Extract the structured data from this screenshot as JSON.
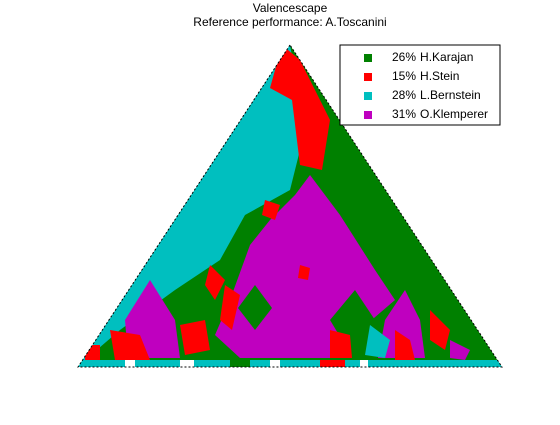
{
  "chart_data": {
    "type": "valencescape",
    "title": "Valencescape",
    "subtitle": "Reference performance: A.Toscanini",
    "series": [
      {
        "name": "H.Karajan",
        "color": "#008000",
        "values": [
          26
        ],
        "value_labels": [
          "26%"
        ]
      },
      {
        "name": "H.Stein",
        "color": "#ff0000",
        "values": [
          15
        ],
        "value_labels": [
          "15%"
        ]
      },
      {
        "name": "L.Bernstein",
        "color": "#00bfbf",
        "values": [
          28
        ],
        "value_labels": [
          "28%"
        ]
      },
      {
        "name": "O.Klemperer",
        "color": "#bf00bf",
        "values": [
          31
        ],
        "value_labels": [
          "31%"
        ]
      }
    ],
    "legend": "upper-right"
  }
}
